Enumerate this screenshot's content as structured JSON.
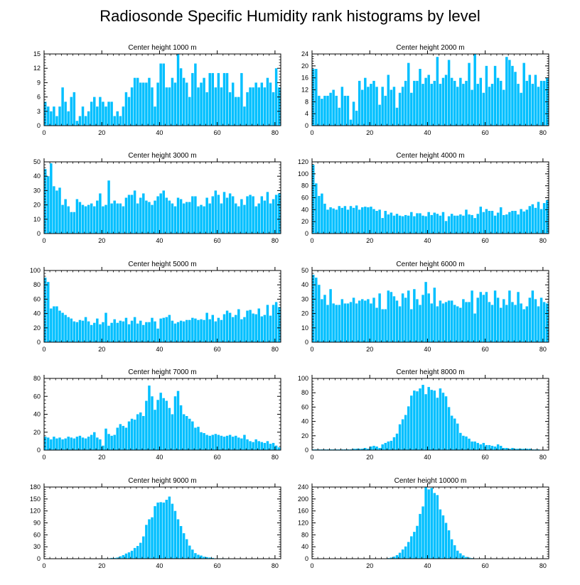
{
  "figure_title": "Radiosonde Specific Humidity rank histograms by level",
  "colors": {
    "bar": "#00BFFF",
    "axis": "#000000",
    "background": "#FFFFFF"
  },
  "chart_data": [
    {
      "type": "bar",
      "title": "Center height 1000 m",
      "xlim": [
        0,
        82
      ],
      "ylim": [
        0,
        15
      ],
      "xticks": [
        0,
        20,
        40,
        60,
        80
      ],
      "yticks": [
        0,
        3,
        6,
        9,
        12,
        15
      ],
      "values": [
        5,
        4,
        3,
        4,
        2,
        4,
        8,
        5,
        3,
        6,
        7,
        1,
        2,
        4,
        2,
        3,
        5,
        6,
        4,
        6,
        5,
        4,
        5,
        5,
        2,
        3,
        2,
        4,
        7,
        6,
        8,
        10,
        10,
        9,
        9,
        9,
        10,
        8,
        4,
        9,
        13,
        13,
        8,
        8,
        10,
        9,
        15,
        12,
        10,
        9,
        6,
        11,
        13,
        8,
        9,
        10,
        7,
        11,
        11,
        8,
        11,
        8,
        11,
        11,
        7,
        9,
        6,
        6,
        11,
        4,
        7,
        8,
        8,
        9,
        8,
        9,
        8,
        10,
        9,
        7,
        12,
        8
      ]
    },
    {
      "type": "bar",
      "title": "Center height 2000 m",
      "xlim": [
        0,
        82
      ],
      "ylim": [
        0,
        24
      ],
      "xticks": [
        0,
        20,
        40,
        60,
        80
      ],
      "yticks": [
        0,
        4,
        8,
        12,
        16,
        20,
        24
      ],
      "values": [
        19,
        19,
        10,
        9,
        10,
        10,
        11,
        12,
        10,
        6,
        13,
        10,
        10,
        2,
        8,
        5,
        15,
        12,
        16,
        13,
        14,
        15,
        13,
        7,
        13,
        10,
        17,
        12,
        13,
        6,
        11,
        13,
        15,
        21,
        11,
        15,
        15,
        19,
        14,
        16,
        17,
        14,
        15,
        23,
        14,
        16,
        17,
        22,
        16,
        15,
        13,
        16,
        14,
        15,
        21,
        12,
        24,
        14,
        16,
        11,
        20,
        13,
        14,
        20,
        16,
        15,
        12,
        23,
        22,
        20,
        18,
        14,
        11,
        21,
        15,
        17,
        14,
        17,
        13,
        15,
        15,
        16
      ]
    },
    {
      "type": "bar",
      "title": "Center height 3000 m",
      "xlim": [
        0,
        82
      ],
      "ylim": [
        0,
        50
      ],
      "xticks": [
        0,
        20,
        40,
        60,
        80
      ],
      "yticks": [
        0,
        10,
        20,
        30,
        40,
        50
      ],
      "values": [
        45,
        40,
        49,
        33,
        30,
        32,
        20,
        24,
        19,
        15,
        15,
        24,
        22,
        20,
        19,
        20,
        21,
        19,
        23,
        28,
        19,
        20,
        37,
        21,
        23,
        21,
        21,
        19,
        25,
        27,
        27,
        30,
        21,
        25,
        28,
        23,
        22,
        20,
        23,
        26,
        28,
        30,
        25,
        23,
        21,
        19,
        25,
        24,
        21,
        22,
        22,
        26,
        26,
        19,
        20,
        19,
        25,
        21,
        26,
        30,
        27,
        21,
        29,
        25,
        28,
        26,
        21,
        19,
        24,
        20,
        26,
        27,
        26,
        19,
        21,
        26,
        23,
        29,
        21,
        24,
        27,
        28
      ]
    },
    {
      "type": "bar",
      "title": "Center height 4000 m",
      "xlim": [
        0,
        82
      ],
      "ylim": [
        0,
        120
      ],
      "xticks": [
        0,
        20,
        40,
        60,
        80
      ],
      "yticks": [
        0,
        20,
        40,
        60,
        80,
        100,
        120
      ],
      "values": [
        115,
        84,
        63,
        67,
        50,
        40,
        44,
        42,
        40,
        46,
        43,
        46,
        40,
        46,
        43,
        47,
        40,
        44,
        45,
        44,
        45,
        41,
        38,
        40,
        26,
        38,
        32,
        35,
        30,
        33,
        30,
        29,
        31,
        30,
        36,
        29,
        34,
        34,
        30,
        29,
        36,
        31,
        35,
        33,
        30,
        36,
        21,
        29,
        33,
        30,
        30,
        32,
        30,
        40,
        32,
        31,
        26,
        33,
        45,
        36,
        41,
        38,
        38,
        30,
        35,
        44,
        31,
        32,
        36,
        38,
        38,
        32,
        41,
        37,
        40,
        46,
        49,
        43,
        53,
        41,
        51,
        56
      ]
    },
    {
      "type": "bar",
      "title": "Center height 5000 m",
      "xlim": [
        0,
        82
      ],
      "ylim": [
        0,
        100
      ],
      "xticks": [
        0,
        20,
        40,
        60,
        80
      ],
      "yticks": [
        0,
        20,
        40,
        60,
        80,
        100
      ],
      "values": [
        90,
        84,
        47,
        50,
        50,
        44,
        41,
        38,
        35,
        33,
        29,
        28,
        31,
        30,
        35,
        29,
        24,
        27,
        33,
        25,
        28,
        41,
        23,
        27,
        32,
        27,
        30,
        29,
        34,
        25,
        30,
        35,
        26,
        30,
        24,
        28,
        28,
        34,
        29,
        19,
        33,
        34,
        35,
        38,
        30,
        26,
        28,
        30,
        29,
        31,
        31,
        34,
        33,
        31,
        32,
        31,
        41,
        32,
        38,
        29,
        34,
        31,
        39,
        44,
        41,
        35,
        38,
        46,
        32,
        35,
        44,
        45,
        40,
        39,
        47,
        36,
        38,
        52,
        37,
        52,
        56,
        49
      ]
    },
    {
      "type": "bar",
      "title": "Center height 6000 m",
      "xlim": [
        0,
        82
      ],
      "ylim": [
        0,
        50
      ],
      "xticks": [
        0,
        20,
        40,
        60,
        80
      ],
      "yticks": [
        0,
        10,
        20,
        30,
        40,
        50
      ],
      "values": [
        47,
        45,
        40,
        30,
        33,
        26,
        37,
        27,
        26,
        26,
        30,
        27,
        27,
        28,
        31,
        27,
        29,
        30,
        29,
        30,
        27,
        31,
        24,
        34,
        23,
        23,
        36,
        35,
        32,
        29,
        25,
        34,
        31,
        36,
        23,
        37,
        30,
        26,
        33,
        42,
        34,
        27,
        38,
        25,
        29,
        27,
        28,
        29,
        29,
        26,
        25,
        24,
        30,
        28,
        28,
        36,
        20,
        31,
        35,
        33,
        35,
        28,
        26,
        36,
        31,
        24,
        30,
        26,
        36,
        28,
        26,
        35,
        27,
        23,
        25,
        31,
        36,
        30,
        25,
        31,
        28,
        27
      ]
    },
    {
      "type": "bar",
      "title": "Center height 7000 m",
      "xlim": [
        0,
        82
      ],
      "ylim": [
        0,
        80
      ],
      "xticks": [
        0,
        20,
        40,
        60,
        80
      ],
      "yticks": [
        0,
        20,
        40,
        60,
        80
      ],
      "values": [
        15,
        14,
        12,
        15,
        13,
        14,
        12,
        13,
        15,
        14,
        13,
        15,
        16,
        14,
        13,
        15,
        17,
        20,
        14,
        12,
        5,
        24,
        18,
        16,
        17,
        25,
        29,
        27,
        25,
        32,
        35,
        34,
        40,
        42,
        38,
        55,
        72,
        60,
        45,
        56,
        64,
        58,
        55,
        47,
        40,
        60,
        66,
        50,
        40,
        38,
        35,
        32,
        25,
        26,
        20,
        19,
        17,
        16,
        17,
        18,
        17,
        16,
        15,
        16,
        17,
        15,
        16,
        14,
        13,
        17,
        12,
        10,
        9,
        12,
        10,
        9,
        8,
        10,
        7,
        8,
        5,
        3
      ]
    },
    {
      "type": "bar",
      "title": "Center height 8000 m",
      "xlim": [
        0,
        82
      ],
      "ylim": [
        0,
        100
      ],
      "xticks": [
        0,
        20,
        40,
        60,
        80
      ],
      "yticks": [
        0,
        20,
        40,
        60,
        80,
        100
      ],
      "values": [
        1,
        1,
        1,
        1,
        1,
        1,
        1,
        1,
        1,
        1,
        1,
        1,
        1,
        1,
        2,
        2,
        2,
        2,
        3,
        2,
        5,
        6,
        5,
        3,
        8,
        10,
        12,
        13,
        18,
        23,
        36,
        43,
        49,
        61,
        76,
        83,
        82,
        86,
        91,
        78,
        88,
        84,
        83,
        73,
        86,
        80,
        75,
        60,
        48,
        44,
        37,
        24,
        20,
        19,
        16,
        12,
        12,
        10,
        8,
        10,
        7,
        7,
        6,
        5,
        8,
        6,
        3,
        3,
        2,
        3,
        2,
        2,
        2,
        2,
        2,
        2,
        1,
        1,
        1,
        0,
        0,
        0
      ]
    },
    {
      "type": "bar",
      "title": "Center height 9000 m",
      "xlim": [
        0,
        82
      ],
      "ylim": [
        0,
        180
      ],
      "xticks": [
        0,
        20,
        40,
        60,
        80
      ],
      "yticks": [
        0,
        30,
        60,
        90,
        120,
        150,
        180
      ],
      "values": [
        0,
        0,
        0,
        0,
        0,
        0,
        0,
        0,
        0,
        0,
        0,
        0,
        0,
        0,
        0,
        0,
        0,
        0,
        0,
        0,
        0,
        1,
        1,
        2,
        2,
        3,
        6,
        9,
        13,
        16,
        20,
        27,
        32,
        40,
        56,
        85,
        99,
        104,
        132,
        141,
        142,
        141,
        148,
        156,
        138,
        120,
        99,
        82,
        64,
        49,
        33,
        23,
        14,
        10,
        8,
        5,
        4,
        3,
        2,
        1,
        1,
        1,
        1,
        0,
        0,
        0,
        0,
        0,
        0,
        0,
        0,
        0,
        0,
        0,
        0,
        0,
        0,
        0,
        0,
        0,
        0,
        0
      ]
    },
    {
      "type": "bar",
      "title": "Center height 10000 m",
      "xlim": [
        0,
        82
      ],
      "ylim": [
        0,
        240
      ],
      "xticks": [
        0,
        20,
        40,
        60,
        80
      ],
      "yticks": [
        0,
        40,
        80,
        120,
        160,
        200,
        240
      ],
      "values": [
        0,
        0,
        0,
        0,
        0,
        0,
        0,
        0,
        0,
        0,
        0,
        0,
        0,
        0,
        0,
        0,
        0,
        0,
        0,
        0,
        0,
        0,
        0,
        0,
        0,
        1,
        2,
        4,
        7,
        12,
        20,
        31,
        41,
        56,
        75,
        90,
        110,
        150,
        175,
        240,
        232,
        237,
        220,
        213,
        165,
        145,
        120,
        95,
        65,
        45,
        27,
        18,
        11,
        6,
        4,
        2,
        1,
        1,
        0,
        0,
        0,
        0,
        0,
        0,
        0,
        0,
        0,
        0,
        0,
        0,
        0,
        0,
        0,
        0,
        0,
        0,
        0,
        0,
        0,
        0,
        0,
        0
      ]
    }
  ]
}
